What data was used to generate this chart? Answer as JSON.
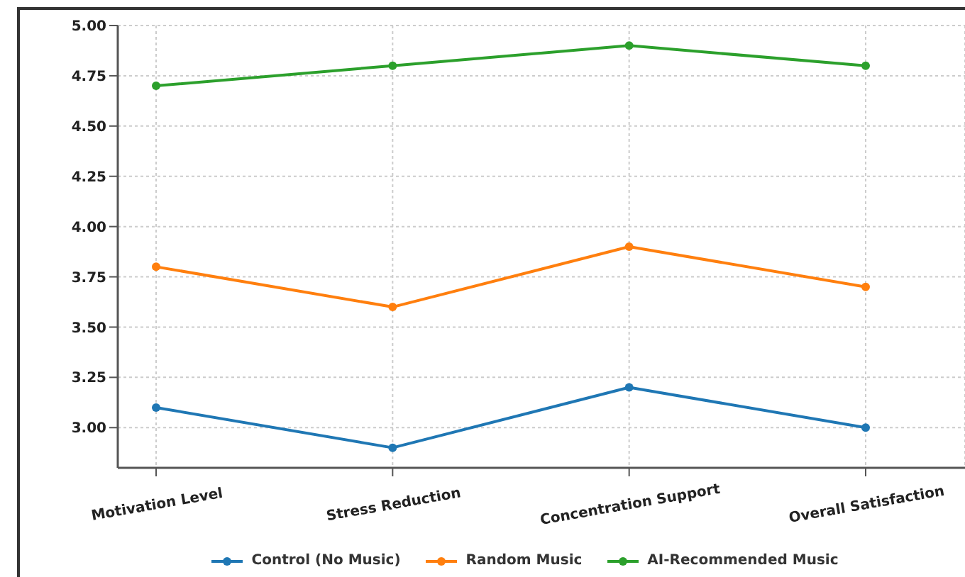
{
  "chart_data": {
    "type": "line",
    "categories": [
      "Motivation Level",
      "Stress Reduction",
      "Concentration Support",
      "Overall Satisfaction"
    ],
    "series": [
      {
        "name": "Control (No Music)",
        "color": "#1f77b4",
        "values": [
          3.1,
          2.9,
          3.2,
          3.0
        ]
      },
      {
        "name": "Random Music",
        "color": "#ff7f0e",
        "values": [
          3.8,
          3.6,
          3.9,
          3.7
        ]
      },
      {
        "name": "AI-Recommended Music",
        "color": "#2ca02c",
        "values": [
          4.7,
          4.8,
          4.9,
          4.8
        ]
      }
    ],
    "ylim": [
      2.8,
      5.0
    ],
    "yticks": [
      {
        "value": 3.0,
        "label": "3.00"
      },
      {
        "value": 3.25,
        "label": "3.25"
      },
      {
        "value": 3.5,
        "label": "3.50"
      },
      {
        "value": 3.75,
        "label": "3.75"
      },
      {
        "value": 4.0,
        "label": "4.00"
      },
      {
        "value": 4.25,
        "label": "4.25"
      },
      {
        "value": 4.5,
        "label": "4.50"
      },
      {
        "value": 4.75,
        "label": "4.75"
      },
      {
        "value": 5.0,
        "label": "5.00"
      }
    ],
    "grid": true,
    "legend": "bottom",
    "marker": "circle",
    "line_style": "solid"
  }
}
